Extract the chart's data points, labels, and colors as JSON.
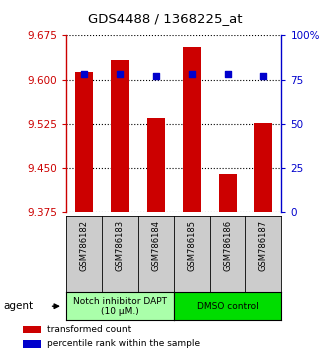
{
  "title": "GDS4488 / 1368225_at",
  "samples": [
    "GSM786182",
    "GSM786183",
    "GSM786184",
    "GSM786185",
    "GSM786186",
    "GSM786187"
  ],
  "red_values": [
    9.613,
    9.633,
    9.535,
    9.655,
    9.44,
    9.527
  ],
  "blue_values": [
    78,
    78,
    77,
    78,
    78,
    77
  ],
  "ylim_left": [
    9.375,
    9.675
  ],
  "ylim_right": [
    0,
    100
  ],
  "yticks_left": [
    9.375,
    9.45,
    9.525,
    9.6,
    9.675
  ],
  "yticks_right": [
    0,
    25,
    50,
    75,
    100
  ],
  "ytick_labels_right": [
    "0",
    "25",
    "50",
    "75",
    "100%"
  ],
  "bar_color": "#cc0000",
  "dot_color": "#0000cc",
  "group1_label": "Notch inhibitor DAPT\n(10 μM.)",
  "group2_label": "DMSO control",
  "group_color1": "#aaffaa",
  "group_color2": "#00dd00",
  "legend_red": "transformed count",
  "legend_blue": "percentile rank within the sample",
  "agent_label": "agent",
  "bar_width": 0.5,
  "background_color": "#ffffff",
  "plot_bg": "#ffffff",
  "tick_label_color_left": "#cc0000",
  "tick_label_color_right": "#0000cc",
  "left_spine_color": "#cc0000",
  "right_spine_color": "#0000cc",
  "tick_box_color": "#cccccc"
}
